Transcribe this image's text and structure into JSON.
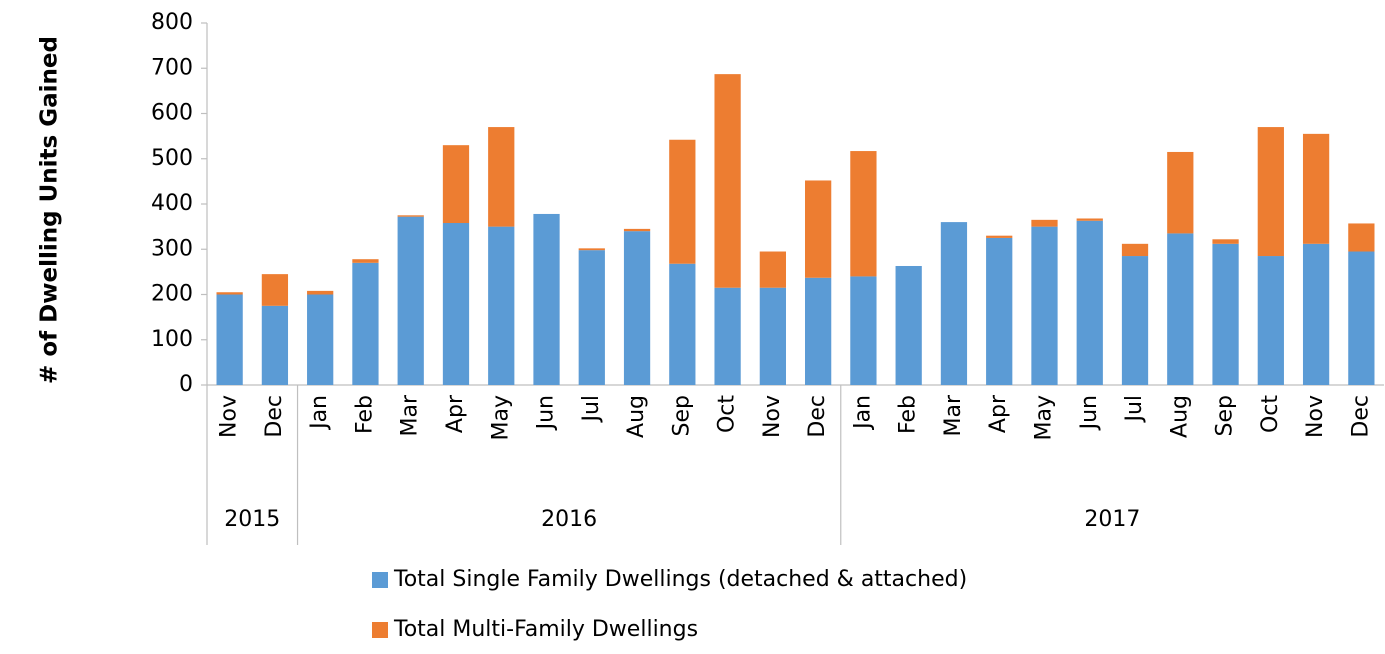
{
  "chart_data": {
    "type": "stacked_bar",
    "y_label": "# of Dwelling Units Gained",
    "categories": [
      "Nov",
      "Dec",
      "Jan",
      "Feb",
      "Mar",
      "Apr",
      "May",
      "Jun",
      "Jul",
      "Aug",
      "Sep",
      "Oct",
      "Nov",
      "Dec",
      "Jan",
      "Feb",
      "Mar",
      "Apr",
      "May",
      "Jun",
      "Jul",
      "Aug",
      "Sep",
      "Oct",
      "Nov",
      "Dec"
    ],
    "category_groups": [
      {
        "name": "2015",
        "size": 2
      },
      {
        "name": "2016",
        "size": 12
      },
      {
        "name": "2017",
        "size": 12
      }
    ],
    "series": [
      {
        "name": "Total Single Family Dwellings (detached & attached)",
        "color": "#5b9bd5",
        "values": [
          200,
          175,
          200,
          270,
          372,
          358,
          350,
          378,
          298,
          340,
          268,
          215,
          215,
          237,
          240,
          263,
          360,
          325,
          350,
          363,
          285,
          335,
          312,
          285,
          312,
          295
        ]
      },
      {
        "name": "Total Multi-Family Dwellings",
        "color": "#ed7d31",
        "values": [
          5,
          70,
          8,
          8,
          3,
          172,
          220,
          0,
          4,
          5,
          274,
          472,
          80,
          215,
          277,
          0,
          0,
          5,
          15,
          5,
          27,
          180,
          10,
          285,
          243,
          62
        ]
      }
    ],
    "ylim": [
      0,
      800
    ],
    "yticks": [
      0,
      100,
      200,
      300,
      400,
      500,
      600,
      700,
      800
    ],
    "grid": false
  }
}
